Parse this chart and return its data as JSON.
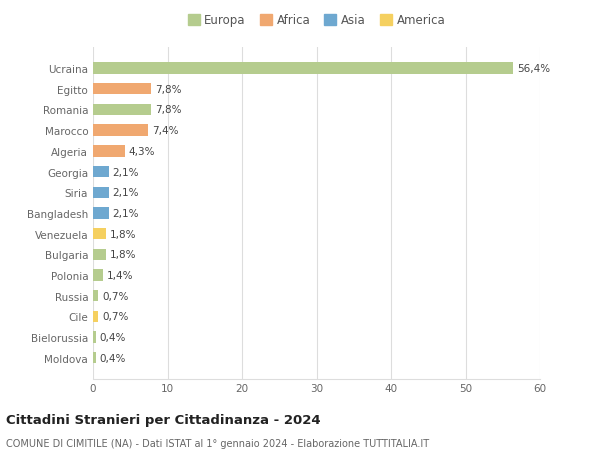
{
  "countries": [
    "Ucraina",
    "Egitto",
    "Romania",
    "Marocco",
    "Algeria",
    "Georgia",
    "Siria",
    "Bangladesh",
    "Venezuela",
    "Bulgaria",
    "Polonia",
    "Russia",
    "Cile",
    "Bielorussia",
    "Moldova"
  ],
  "values": [
    56.4,
    7.8,
    7.8,
    7.4,
    4.3,
    2.1,
    2.1,
    2.1,
    1.8,
    1.8,
    1.4,
    0.7,
    0.7,
    0.4,
    0.4
  ],
  "labels": [
    "56,4%",
    "7,8%",
    "7,8%",
    "7,4%",
    "4,3%",
    "2,1%",
    "2,1%",
    "2,1%",
    "1,8%",
    "1,8%",
    "1,4%",
    "0,7%",
    "0,7%",
    "0,4%",
    "0,4%"
  ],
  "continents": [
    "Europa",
    "Africa",
    "Europa",
    "Africa",
    "Africa",
    "Asia",
    "Asia",
    "Asia",
    "America",
    "Europa",
    "Europa",
    "Europa",
    "America",
    "Europa",
    "Europa"
  ],
  "continent_colors": {
    "Europa": "#b5cc8e",
    "Africa": "#f0a870",
    "Asia": "#6ea8d0",
    "America": "#f5d060"
  },
  "legend_order": [
    "Europa",
    "Africa",
    "Asia",
    "America"
  ],
  "xlim": [
    0,
    60
  ],
  "xticks": [
    0,
    10,
    20,
    30,
    40,
    50,
    60
  ],
  "title": "Cittadini Stranieri per Cittadinanza - 2024",
  "subtitle": "COMUNE DI CIMITILE (NA) - Dati ISTAT al 1° gennaio 2024 - Elaborazione TUTTITALIA.IT",
  "bg_color": "#ffffff",
  "grid_color": "#dddddd",
  "bar_height": 0.55,
  "label_fontsize": 7.5,
  "ytick_fontsize": 7.5,
  "xtick_fontsize": 7.5,
  "title_fontsize": 9.5,
  "subtitle_fontsize": 7.0,
  "legend_fontsize": 8.5
}
